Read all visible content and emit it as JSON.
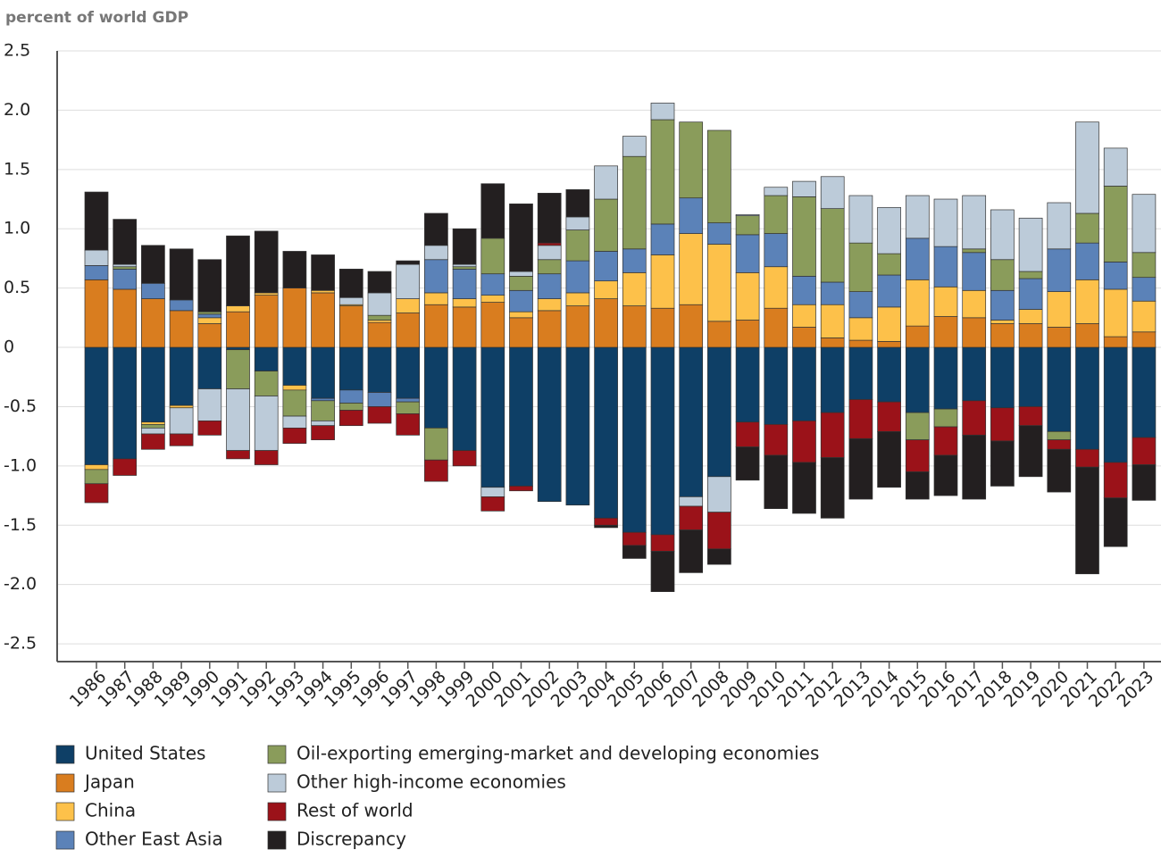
{
  "chart_data": {
    "type": "stacked_bar",
    "y_label": "percent of world GDP",
    "categories": [
      "1986",
      "1987",
      "1988",
      "1989",
      "1990",
      "1991",
      "1992",
      "1993",
      "1994",
      "1995",
      "1996",
      "1997",
      "1998",
      "1999",
      "2000",
      "2001",
      "2002",
      "2003",
      "2004",
      "2005",
      "2006",
      "2007",
      "2008",
      "2009",
      "2010",
      "2011",
      "2012",
      "2013",
      "2014",
      "2015",
      "2016",
      "2017",
      "2018",
      "2019",
      "2020",
      "2021",
      "2022",
      "2023"
    ],
    "ylim": [
      -2.65,
      2.5
    ],
    "yticks": [
      2.5,
      {
        "value": 2,
        "label": "2.0"
      },
      1.5,
      {
        "value": 1,
        "label": "1.0"
      },
      0.5,
      0,
      -0.5,
      {
        "value": -1,
        "label": "-1.0"
      },
      -1.5,
      {
        "value": -2,
        "label": "-2.0"
      },
      -2.5
    ],
    "grid": true,
    "series": [
      {
        "name": "United States",
        "color": "#0e3f66",
        "values": [
          -0.99,
          -0.94,
          -0.63,
          -0.49,
          -0.35,
          -0.02,
          -0.2,
          -0.32,
          -0.43,
          -0.36,
          -0.38,
          -0.43,
          -0.68,
          -0.87,
          -1.18,
          -1.17,
          -1.3,
          -1.33,
          -1.44,
          -1.56,
          -1.58,
          -1.26,
          -1.09,
          -0.63,
          -0.65,
          -0.62,
          -0.55,
          -0.44,
          -0.46,
          -0.55,
          -0.52,
          -0.45,
          -0.51,
          -0.5,
          -0.71,
          -0.86,
          -0.97,
          -0.76
        ]
      },
      {
        "name": "Japan",
        "color": "#d97d1f",
        "values": [
          0.57,
          0.49,
          0.41,
          0.31,
          0.2,
          0.3,
          0.44,
          0.5,
          0.46,
          0.35,
          0.21,
          0.29,
          0.36,
          0.34,
          0.38,
          0.25,
          0.31,
          0.35,
          0.41,
          0.35,
          0.33,
          0.36,
          0.22,
          0.23,
          0.33,
          0.17,
          0.08,
          0.06,
          0.05,
          0.18,
          0.26,
          0.25,
          0.2,
          0.2,
          0.17,
          0.2,
          0.09,
          0.13
        ]
      },
      {
        "name": "China",
        "color": "#fdc14a",
        "values": [
          -0.04,
          0,
          -0.02,
          -0.02,
          0.05,
          0.05,
          0.02,
          -0.04,
          0.02,
          0.01,
          0.02,
          0.12,
          0.1,
          0.07,
          0.06,
          0.05,
          0.1,
          0.11,
          0.15,
          0.28,
          0.45,
          0.6,
          0.65,
          0.4,
          0.35,
          0.19,
          0.28,
          0.19,
          0.29,
          0.39,
          0.25,
          0.23,
          0.03,
          0.12,
          0.3,
          0.37,
          0.4,
          0.26
        ]
      },
      {
        "name": "Other East Asia",
        "color": "#5b82b8",
        "values": [
          0.12,
          0.17,
          0.13,
          0.09,
          0.03,
          0,
          0,
          0,
          -0.02,
          -0.11,
          -0.12,
          -0.03,
          0.28,
          0.25,
          0.18,
          0.18,
          0.21,
          0.27,
          0.25,
          0.2,
          0.26,
          0.3,
          0.18,
          0.32,
          0.28,
          0.24,
          0.19,
          0.22,
          0.27,
          0.35,
          0.34,
          0.32,
          0.25,
          0.26,
          0.36,
          0.31,
          0.23,
          0.2
        ]
      },
      {
        "name": "Oil-exporting emerging-market and developing economies",
        "color": "#8a9c5b",
        "values": [
          -0.12,
          0.02,
          -0.03,
          0,
          0.02,
          -0.33,
          -0.21,
          -0.22,
          -0.17,
          -0.06,
          0.04,
          -0.1,
          -0.27,
          0.02,
          0.3,
          0.12,
          0.12,
          0.26,
          0.44,
          0.78,
          0.88,
          0.64,
          0.78,
          0.16,
          0.32,
          0.67,
          0.62,
          0.41,
          0.18,
          -0.23,
          -0.15,
          0.03,
          0.26,
          0.06,
          -0.07,
          0.25,
          0.64,
          0.21
        ]
      },
      {
        "name": "Other high-income economies",
        "color": "#bccbd9",
        "values": [
          0.13,
          0.02,
          -0.05,
          -0.22,
          -0.27,
          -0.52,
          -0.46,
          -0.1,
          -0.04,
          0.06,
          0.19,
          0.29,
          0.12,
          0.02,
          -0.08,
          0.04,
          0.12,
          0.11,
          0.28,
          0.17,
          0.14,
          -0.08,
          -0.3,
          0.01,
          0.07,
          0.13,
          0.27,
          0.4,
          0.39,
          0.36,
          0.4,
          0.45,
          0.42,
          0.45,
          0.39,
          0.77,
          0.32,
          0.49
        ]
      },
      {
        "name": "Rest of world",
        "color": "#9b1219",
        "values": [
          -0.16,
          -0.14,
          -0.13,
          -0.1,
          -0.12,
          -0.07,
          -0.12,
          -0.13,
          -0.12,
          -0.13,
          -0.14,
          -0.18,
          -0.18,
          -0.13,
          -0.12,
          -0.04,
          0.02,
          0,
          -0.06,
          -0.11,
          -0.14,
          -0.2,
          -0.31,
          -0.21,
          -0.26,
          -0.35,
          -0.38,
          -0.33,
          -0.25,
          -0.27,
          -0.24,
          -0.29,
          -0.28,
          -0.16,
          -0.08,
          -0.15,
          -0.3,
          -0.23
        ]
      },
      {
        "name": "Discrepancy",
        "color": "#231f20",
        "values": [
          0.49,
          0.38,
          0.32,
          0.43,
          0.44,
          0.59,
          0.52,
          0.31,
          0.3,
          0.24,
          0.18,
          0.03,
          0.27,
          0.3,
          0.46,
          0.57,
          0.42,
          0.23,
          -0.02,
          -0.11,
          -0.34,
          -0.36,
          -0.13,
          -0.28,
          -0.45,
          -0.43,
          -0.51,
          -0.51,
          -0.47,
          -0.23,
          -0.34,
          -0.54,
          -0.38,
          -0.43,
          -0.36,
          -0.9,
          -0.41,
          -0.3
        ]
      }
    ]
  }
}
